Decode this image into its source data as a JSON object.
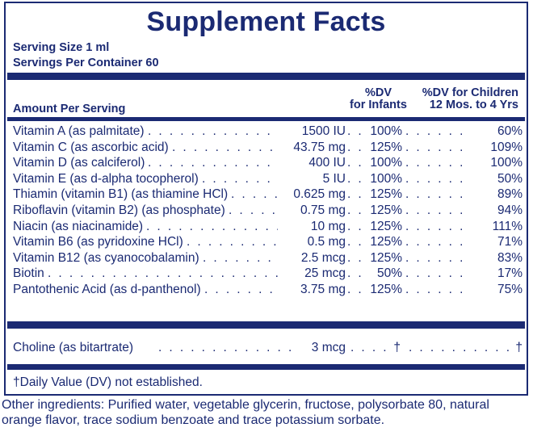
{
  "title": "Supplement Facts",
  "serving_size": "Serving Size 1 ml",
  "servings_per_container": "Servings Per Container 60",
  "headers": {
    "amount": "Amount Per Serving",
    "infants_line1": "%DV",
    "infants_line2": "for Infants",
    "children_line1": "%DV for Children",
    "children_line2": "12 Mos. to 4 Yrs"
  },
  "nutrients": [
    {
      "name": "Vitamin A (as palmitate)",
      "amount": "1500 IU",
      "dv_infants": "100%",
      "dv_children": "60%"
    },
    {
      "name": "Vitamin C (as ascorbic acid)",
      "amount": "43.75 mg",
      "dv_infants": "125%",
      "dv_children": "109%"
    },
    {
      "name": "Vitamin D (as calciferol)",
      "amount": "400 IU",
      "dv_infants": "100%",
      "dv_children": "100%"
    },
    {
      "name": "Vitamin E (as d-alpha tocopherol)",
      "amount": "5 IU",
      "dv_infants": "100%",
      "dv_children": "50%"
    },
    {
      "name": "Thiamin (vitamin B1) (as thiamine HCl)",
      "amount": "0.625 mg",
      "dv_infants": "125%",
      "dv_children": "89%"
    },
    {
      "name": "Riboflavin (vitamin B2) (as phosphate)",
      "amount": "0.75 mg",
      "dv_infants": "125%",
      "dv_children": "94%"
    },
    {
      "name": "Niacin (as niacinamide)",
      "amount": "10 mg",
      "dv_infants": "125%",
      "dv_children": "111%"
    },
    {
      "name": "Vitamin B6 (as pyridoxine HCl)",
      "amount": "0.5 mg",
      "dv_infants": "125%",
      "dv_children": "71%"
    },
    {
      "name": "Vitamin B12 (as cyanocobalamin)",
      "amount": "2.5 mcg",
      "dv_infants": "125%",
      "dv_children": "83%"
    },
    {
      "name": "Biotin",
      "amount": "25 mcg",
      "dv_infants": "50%",
      "dv_children": "17%"
    },
    {
      "name": "Pantothenic Acid (as d-panthenol)",
      "amount": "3.75 mg",
      "dv_infants": "125%",
      "dv_children": "75%"
    }
  ],
  "choline": {
    "name": "Choline (as bitartrate)",
    "amount": "3 mcg",
    "dv_infants": "†",
    "dv_children": "†"
  },
  "footnote": "†Daily Value (DV) not established.",
  "other_ingredients": "Other ingredients: Purified water, vegetable glycerin, fructose, polysorbate 80, natural orange flavor, trace sodium benzoate and trace potassium sorbate.",
  "colors": {
    "ink": "#1b2a73"
  }
}
